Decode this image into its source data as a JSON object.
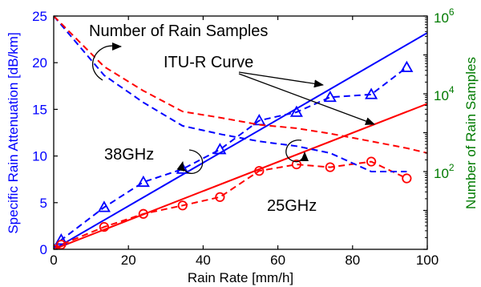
{
  "chart_data": {
    "type": "line",
    "xlabel": "Rain Rate [mm/h]",
    "ylabel_left": "Specific Rain Attenuation [dB/km]",
    "ylabel_right": "Number of Rain Samples",
    "xlim": [
      0,
      100
    ],
    "ylim_left": [
      0,
      25
    ],
    "ylim_right_log": [
      1,
      1000000
    ],
    "x_ticks": [
      0,
      20,
      40,
      60,
      80,
      100
    ],
    "y_left_ticks": [
      0,
      5,
      10,
      15,
      20,
      25
    ],
    "y_right_ticks": [
      {
        "base": "10",
        "exp": "2",
        "value": 100
      },
      {
        "base": "10",
        "exp": "4",
        "value": 10000
      },
      {
        "base": "10",
        "exp": "6",
        "value": 1000000
      }
    ],
    "grid": false,
    "colors": {
      "blue": "#0000ff",
      "red": "#ff0000",
      "green": "#007a00",
      "axis": "#000000"
    },
    "series": [
      {
        "key": "itu_38",
        "color": "blue",
        "style": "solid",
        "axis": "left",
        "x": [
          0,
          100
        ],
        "y": [
          0,
          23.2
        ]
      },
      {
        "key": "itu_25",
        "color": "red",
        "style": "solid",
        "axis": "left",
        "x": [
          0,
          100
        ],
        "y": [
          0,
          15.6
        ]
      },
      {
        "key": "meas_38",
        "color": "blue",
        "style": "dashed",
        "marker": "triangle",
        "axis": "left",
        "x": [
          0,
          2,
          13.5,
          24,
          34.5,
          44.5,
          55,
          65,
          74,
          85,
          94.5
        ],
        "y": [
          0,
          1.0,
          4.5,
          7.2,
          8.6,
          10.7,
          13.8,
          14.7,
          16.3,
          16.6,
          19.5
        ]
      },
      {
        "key": "meas_25",
        "color": "red",
        "style": "dashed",
        "marker": "circle",
        "axis": "left",
        "x": [
          0,
          2,
          13.5,
          24,
          34.5,
          44.5,
          55,
          65,
          74,
          85,
          94.5
        ],
        "y": [
          0,
          0.5,
          2.4,
          3.8,
          4.7,
          5.6,
          8.4,
          9.1,
          8.8,
          9.4,
          7.6
        ]
      },
      {
        "key": "samples_38",
        "color": "blue",
        "style": "dashed",
        "axis": "right",
        "x": [
          0,
          13.5,
          24,
          34.5,
          45,
          55,
          65,
          74,
          85,
          94.5
        ],
        "y": [
          1000000,
          30000,
          6000,
          1500,
          900,
          600,
          450,
          300,
          100,
          100
        ]
      },
      {
        "key": "samples_25",
        "color": "red",
        "style": "dashed",
        "axis": "right",
        "x": [
          0,
          13.5,
          24,
          34.5,
          45,
          55,
          65,
          74,
          85,
          94.5,
          100
        ],
        "y": [
          1000000,
          50000,
          12000,
          3500,
          2400,
          1600,
          1300,
          950,
          600,
          400,
          300
        ]
      }
    ],
    "annotations": {
      "samples": "Number of Rain Samples",
      "itu": "ITU-R Curve",
      "ghz38": "38GHz",
      "ghz25": "25GHz"
    }
  }
}
